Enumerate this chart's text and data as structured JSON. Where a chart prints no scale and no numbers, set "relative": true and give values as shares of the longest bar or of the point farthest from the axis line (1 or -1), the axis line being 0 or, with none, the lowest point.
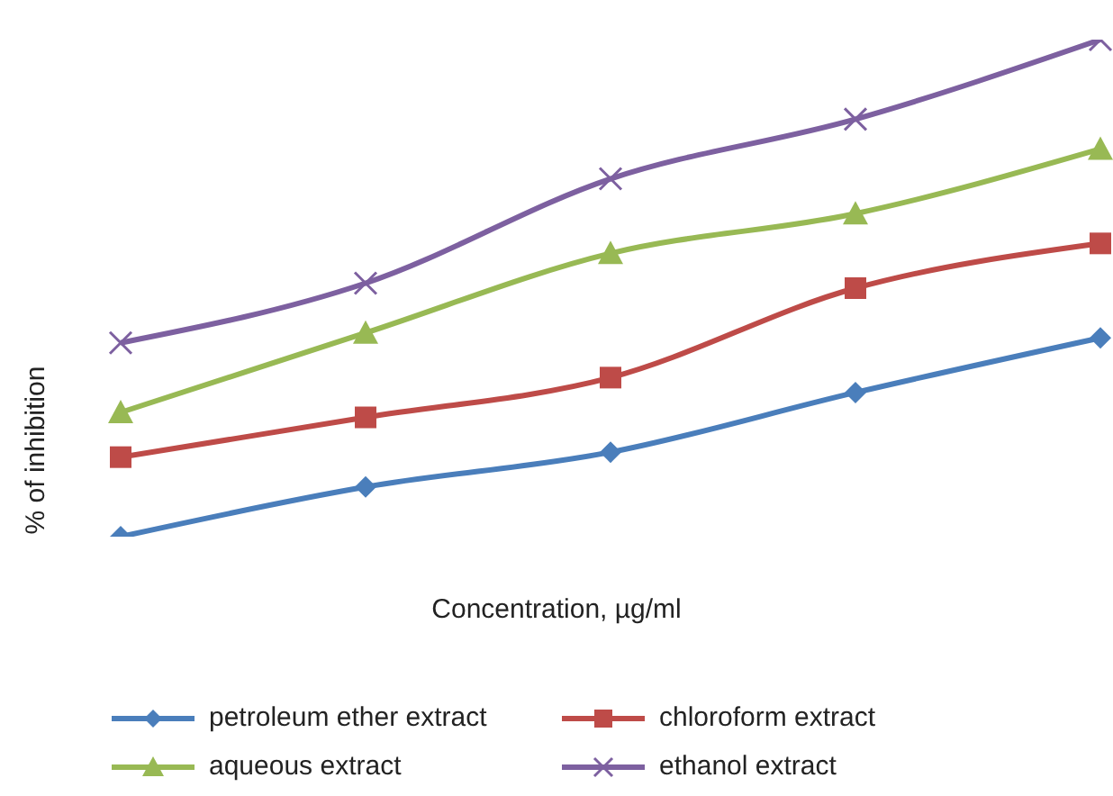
{
  "chart_data": {
    "type": "line",
    "relative": true,
    "xlabel": "Concentration, µg/ml",
    "ylabel": "% of inhibition",
    "categories": [
      null,
      null,
      null,
      null,
      null
    ],
    "legend": "bottom",
    "grid": false,
    "tick_labels": false,
    "line_style": "solid",
    "series": [
      {
        "name": "petroleum ether extract",
        "color": "#4a7ebb",
        "marker": "diamond",
        "values": [
          0,
          0.1,
          0.17,
          0.29,
          0.4
        ]
      },
      {
        "name": "chloroform extract",
        "color": "#be4b48",
        "marker": "square",
        "values": [
          0.16,
          0.24,
          0.32,
          0.5,
          0.59
        ]
      },
      {
        "name": "aqueous extract",
        "color": "#98b954",
        "marker": "triangle",
        "values": [
          0.25,
          0.41,
          0.57,
          0.65,
          0.78
        ]
      },
      {
        "name": "ethanol extract",
        "color": "#7d60a0",
        "marker": "cross",
        "values": [
          0.39,
          0.51,
          0.72,
          0.84,
          1
        ]
      }
    ]
  }
}
